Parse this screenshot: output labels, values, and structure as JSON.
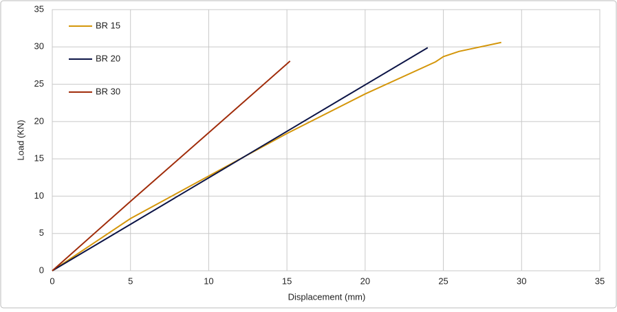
{
  "chart_data": {
    "type": "line",
    "x_label": "Displacement (mm)",
    "y_label": "Load (KN)",
    "xlim": [
      0,
      35
    ],
    "ylim": [
      0,
      35
    ],
    "xticks": [
      0,
      5,
      10,
      15,
      20,
      25,
      30,
      35
    ],
    "yticks": [
      0,
      5,
      10,
      15,
      20,
      25,
      30,
      35
    ],
    "grid": true,
    "legend": "upper-left",
    "series": [
      {
        "name": "BR 15",
        "color": "#d4960a",
        "x": [
          0,
          5,
          10,
          15,
          20,
          24.5,
          25,
          26,
          28.7
        ],
        "values": [
          0,
          7.0,
          12.7,
          18.4,
          23.7,
          28.0,
          28.7,
          29.4,
          30.6
        ]
      },
      {
        "name": "BR 20",
        "color": "#0c1446",
        "x": [
          0,
          24
        ],
        "values": [
          0,
          29.9
        ]
      },
      {
        "name": "BR 30",
        "color": "#a02c0a",
        "x": [
          0,
          5,
          10,
          15.2
        ],
        "values": [
          0,
          9.3,
          18.5,
          28.1
        ]
      }
    ]
  }
}
